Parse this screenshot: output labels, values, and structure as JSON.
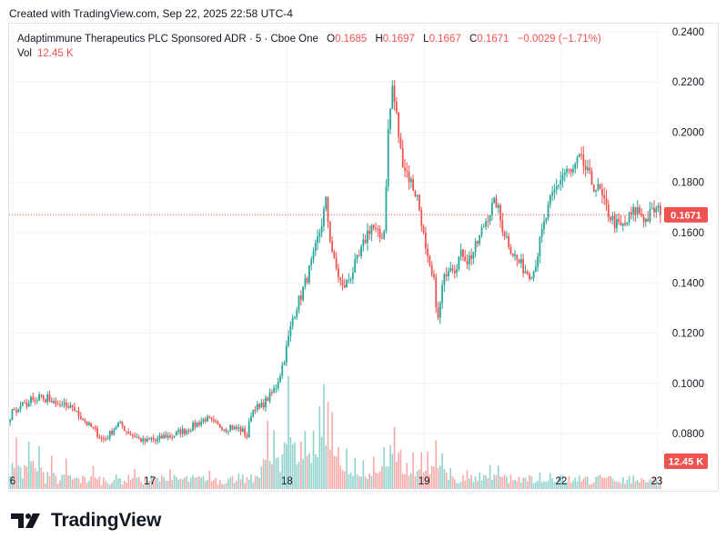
{
  "header": {
    "created_text": "Created with TradingView.com, Sep 22, 2025 22:58 UTC-4"
  },
  "legend": {
    "symbol": "Adaptimmune Therapeutics PLC Sponsored ADR · 5 · Cboe One",
    "o_label": "O",
    "o_value": "0.1685",
    "h_label": "H",
    "h_value": "0.1697",
    "l_label": "L",
    "l_value": "0.1667",
    "c_label": "C",
    "c_value": "0.1671",
    "change": "−0.0029 (−1.71%)",
    "vol_label": "Vol",
    "vol_value": "12.45 K"
  },
  "badges": {
    "price": "0.1671",
    "volume": "12.45 K"
  },
  "branding": {
    "logo_text": "TradingView"
  },
  "colors": {
    "up": "#26a69a",
    "down": "#ef5350",
    "grid": "#f0f3fa",
    "price_line": "#ef5350"
  },
  "chart_data": {
    "type": "candlestick",
    "price_axis": {
      "ylim": [
        0.058,
        0.2432
      ],
      "ticks": [
        "0.2400",
        "0.2200",
        "0.2000",
        "0.1800",
        "0.1600",
        "0.1400",
        "0.1200",
        "0.1000",
        "0.0800"
      ]
    },
    "time_axis": {
      "ticks": [
        "6",
        "17",
        "18",
        "19",
        "22",
        "23"
      ]
    },
    "last_price": 0.1671,
    "last_volume_k": 12.45,
    "volume_max_k": 103,
    "path": [
      [
        0,
        0.087
      ],
      [
        2,
        0.09
      ],
      [
        4,
        0.089
      ],
      [
        6,
        0.093
      ],
      [
        8,
        0.09
      ],
      [
        10,
        0.094
      ],
      [
        12,
        0.092
      ],
      [
        14,
        0.096
      ],
      [
        16,
        0.093
      ],
      [
        18,
        0.095
      ],
      [
        20,
        0.091
      ],
      [
        22,
        0.093
      ],
      [
        24,
        0.09
      ],
      [
        26,
        0.092
      ],
      [
        28,
        0.089
      ],
      [
        30,
        0.091
      ],
      [
        32,
        0.088
      ],
      [
        34,
        0.087
      ],
      [
        36,
        0.085
      ],
      [
        38,
        0.083
      ],
      [
        40,
        0.082
      ],
      [
        42,
        0.08
      ],
      [
        44,
        0.078
      ],
      [
        46,
        0.078
      ],
      [
        48,
        0.08
      ],
      [
        50,
        0.082
      ],
      [
        52,
        0.084
      ],
      [
        54,
        0.083
      ],
      [
        56,
        0.081
      ],
      [
        58,
        0.08
      ],
      [
        60,
        0.079
      ],
      [
        62,
        0.078
      ],
      [
        64,
        0.077
      ],
      [
        66,
        0.077
      ],
      [
        68,
        0.078
      ],
      [
        70,
        0.077
      ],
      [
        72,
        0.078
      ],
      [
        74,
        0.079
      ],
      [
        76,
        0.079
      ],
      [
        78,
        0.079
      ],
      [
        80,
        0.08
      ],
      [
        82,
        0.081
      ],
      [
        84,
        0.081
      ],
      [
        86,
        0.082
      ],
      [
        88,
        0.083
      ],
      [
        90,
        0.084
      ],
      [
        92,
        0.085
      ],
      [
        94,
        0.086
      ],
      [
        96,
        0.085
      ],
      [
        98,
        0.084
      ],
      [
        100,
        0.083
      ],
      [
        102,
        0.083
      ],
      [
        104,
        0.082
      ],
      [
        106,
        0.083
      ],
      [
        108,
        0.082
      ],
      [
        110,
        0.082
      ],
      [
        112,
        0.081
      ],
      [
        114,
        0.079
      ],
      [
        116,
        0.088
      ],
      [
        118,
        0.091
      ],
      [
        120,
        0.09
      ],
      [
        122,
        0.092
      ],
      [
        124,
        0.094
      ],
      [
        126,
        0.096
      ],
      [
        128,
        0.099
      ],
      [
        130,
        0.104
      ],
      [
        132,
        0.11
      ],
      [
        134,
        0.118
      ],
      [
        136,
        0.126
      ],
      [
        138,
        0.131
      ],
      [
        140,
        0.135
      ],
      [
        142,
        0.14
      ],
      [
        144,
        0.145
      ],
      [
        146,
        0.15
      ],
      [
        148,
        0.157
      ],
      [
        150,
        0.164
      ],
      [
        152,
        0.172
      ],
      [
        154,
        0.158
      ],
      [
        156,
        0.148
      ],
      [
        158,
        0.143
      ],
      [
        160,
        0.138
      ],
      [
        162,
        0.14
      ],
      [
        164,
        0.143
      ],
      [
        166,
        0.147
      ],
      [
        168,
        0.15
      ],
      [
        170,
        0.155
      ],
      [
        172,
        0.16
      ],
      [
        174,
        0.163
      ],
      [
        176,
        0.16
      ],
      [
        178,
        0.158
      ],
      [
        180,
        0.161
      ],
      [
        182,
        0.2
      ],
      [
        184,
        0.218
      ],
      [
        186,
        0.206
      ],
      [
        188,
        0.192
      ],
      [
        190,
        0.186
      ],
      [
        192,
        0.182
      ],
      [
        194,
        0.178
      ],
      [
        196,
        0.174
      ],
      [
        198,
        0.165
      ],
      [
        200,
        0.152
      ],
      [
        202,
        0.145
      ],
      [
        204,
        0.14
      ],
      [
        206,
        0.125
      ],
      [
        208,
        0.138
      ],
      [
        210,
        0.145
      ],
      [
        212,
        0.148
      ],
      [
        214,
        0.146
      ],
      [
        216,
        0.15
      ],
      [
        218,
        0.152
      ],
      [
        220,
        0.149
      ],
      [
        222,
        0.151
      ],
      [
        224,
        0.154
      ],
      [
        226,
        0.158
      ],
      [
        228,
        0.163
      ],
      [
        230,
        0.167
      ],
      [
        232,
        0.17
      ],
      [
        234,
        0.172
      ],
      [
        236,
        0.165
      ],
      [
        238,
        0.16
      ],
      [
        240,
        0.156
      ],
      [
        242,
        0.152
      ],
      [
        244,
        0.149
      ],
      [
        246,
        0.147
      ],
      [
        248,
        0.145
      ],
      [
        250,
        0.144
      ],
      [
        252,
        0.145
      ],
      [
        254,
        0.152
      ],
      [
        256,
        0.16
      ],
      [
        258,
        0.166
      ],
      [
        260,
        0.172
      ],
      [
        262,
        0.176
      ],
      [
        264,
        0.18
      ],
      [
        266,
        0.183
      ],
      [
        268,
        0.185
      ],
      [
        270,
        0.183
      ],
      [
        272,
        0.186
      ],
      [
        274,
        0.189
      ],
      [
        276,
        0.187
      ],
      [
        278,
        0.183
      ],
      [
        280,
        0.18
      ],
      [
        282,
        0.178
      ],
      [
        284,
        0.176
      ],
      [
        286,
        0.171
      ],
      [
        288,
        0.168
      ],
      [
        290,
        0.165
      ],
      [
        292,
        0.163
      ],
      [
        294,
        0.162
      ],
      [
        296,
        0.163
      ],
      [
        298,
        0.166
      ],
      [
        300,
        0.168
      ],
      [
        302,
        0.169
      ],
      [
        304,
        0.167
      ],
      [
        306,
        0.165
      ],
      [
        308,
        0.167
      ],
      [
        310,
        0.169
      ],
      [
        312,
        0.1685
      ],
      [
        313,
        0.1671
      ]
    ],
    "volume_spikes": [
      [
        3,
        45
      ],
      [
        9,
        50
      ],
      [
        14,
        40
      ],
      [
        20,
        30
      ],
      [
        27,
        25
      ],
      [
        40,
        18
      ],
      [
        60,
        20
      ],
      [
        77,
        16
      ],
      [
        96,
        15
      ],
      [
        110,
        12
      ],
      [
        121,
        22
      ],
      [
        124,
        52
      ],
      [
        127,
        55
      ],
      [
        131,
        30
      ],
      [
        134,
        92
      ],
      [
        137,
        42
      ],
      [
        140,
        50
      ],
      [
        142,
        60
      ],
      [
        146,
        45
      ],
      [
        149,
        70
      ],
      [
        151,
        88
      ],
      [
        153,
        75
      ],
      [
        155,
        60
      ],
      [
        158,
        45
      ],
      [
        162,
        35
      ],
      [
        166,
        25
      ],
      [
        170,
        22
      ],
      [
        175,
        30
      ],
      [
        180,
        40
      ],
      [
        183,
        42
      ],
      [
        185,
        62
      ],
      [
        188,
        35
      ],
      [
        191,
        25
      ],
      [
        194,
        28
      ],
      [
        198,
        33
      ],
      [
        201,
        32
      ],
      [
        205,
        40
      ],
      [
        208,
        38
      ],
      [
        212,
        20
      ],
      [
        220,
        16
      ],
      [
        226,
        15
      ],
      [
        231,
        22
      ],
      [
        235,
        20
      ],
      [
        245,
        13
      ],
      [
        250,
        14
      ],
      [
        255,
        14
      ],
      [
        260,
        16
      ],
      [
        266,
        14
      ],
      [
        274,
        13
      ],
      [
        282,
        11
      ],
      [
        290,
        10
      ],
      [
        300,
        9
      ],
      [
        309,
        8
      ]
    ]
  }
}
